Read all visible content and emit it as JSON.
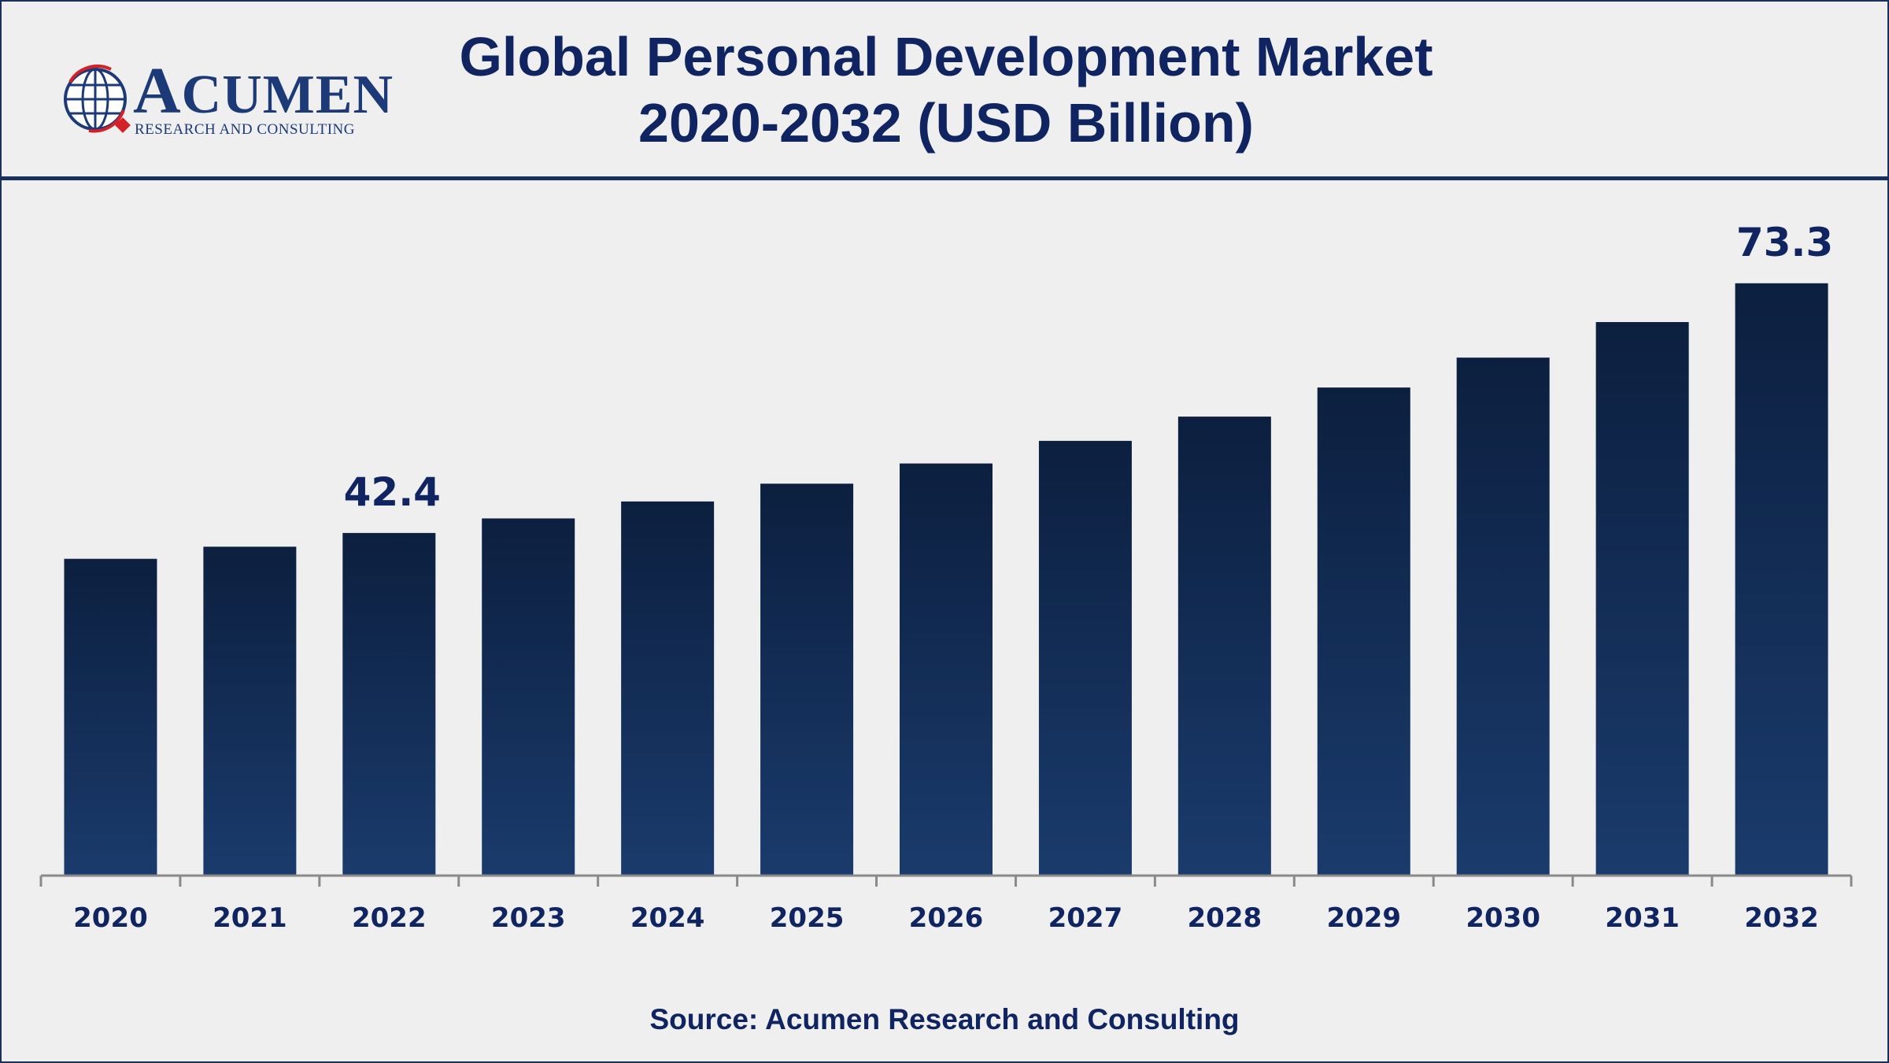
{
  "header": {
    "title_line1": "Global Personal Development Market",
    "title_line2": "2020-2032 (USD Billion)"
  },
  "logo": {
    "name_initial": "A",
    "name_rest": "CUMEN",
    "subtitle": "RESEARCH AND CONSULTING",
    "icon": "globe-icon"
  },
  "footer": {
    "source": "Source: Acumen Research and Consulting"
  },
  "colors": {
    "bar_top": "#0c1f3f",
    "bar_bottom": "#1a3b6c",
    "title": "#0f2460",
    "frame": "#1a2f5a",
    "logo_accent": "#d42027"
  },
  "chart_data": {
    "type": "bar",
    "categories": [
      "2020",
      "2021",
      "2022",
      "2023",
      "2024",
      "2025",
      "2026",
      "2027",
      "2028",
      "2029",
      "2030",
      "2031",
      "2032"
    ],
    "values": [
      39.2,
      40.7,
      42.4,
      44.2,
      46.3,
      48.5,
      51.0,
      53.8,
      56.8,
      60.4,
      64.1,
      68.5,
      73.3
    ],
    "data_labels": [
      {
        "category": "2022",
        "text": "42.4"
      },
      {
        "category": "2032",
        "text": "73.3"
      }
    ],
    "ylim": [
      0,
      80
    ],
    "y_axis_visible": false,
    "grid": false,
    "legend": "none",
    "title": "Global Personal Development Market 2020-2032 (USD Billion)",
    "xlabel": "",
    "ylabel": ""
  }
}
